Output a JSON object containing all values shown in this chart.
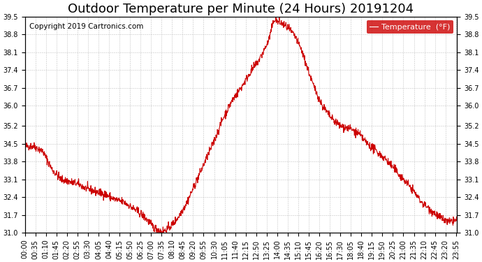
{
  "title": "Outdoor Temperature per Minute (24 Hours) 20191204",
  "copyright_text": "Copyright 2019 Cartronics.com",
  "legend_label": "Temperature  (°F)",
  "line_color": "#cc0000",
  "background_color": "#ffffff",
  "grid_color": "#aaaaaa",
  "ylim": [
    31.0,
    39.5
  ],
  "yticks": [
    31.0,
    31.7,
    32.4,
    33.1,
    33.8,
    34.5,
    35.2,
    36.0,
    36.7,
    37.4,
    38.1,
    38.8,
    39.5
  ],
  "xlabel_interval_minutes": 35,
  "total_minutes": 1440,
  "legend_box_color": "#cc0000",
  "legend_text_color": "#ffffff",
  "title_fontsize": 13,
  "tick_fontsize": 7,
  "copyright_fontsize": 7.5
}
